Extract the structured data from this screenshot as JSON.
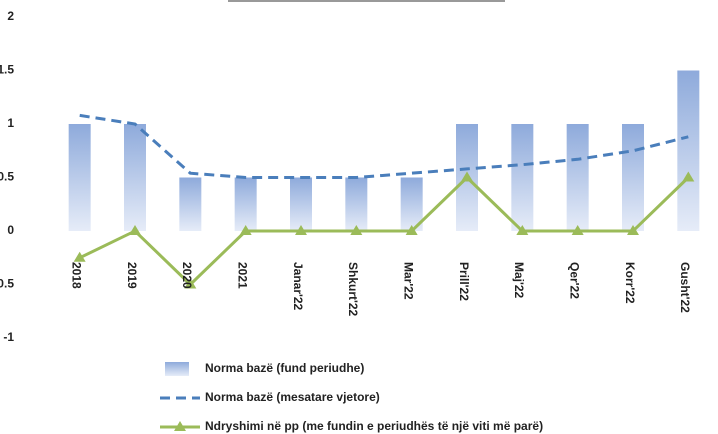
{
  "chart_data": {
    "type": "bar_line",
    "categories": [
      "2018",
      "2019",
      "2020",
      "2021",
      "Janar'22",
      "Shkurt'22",
      "Mar'22",
      "Prill'22",
      "Maj'22",
      "Qer'22",
      "Korr'22",
      "Gusht'22"
    ],
    "series": [
      {
        "name": "Norma bazë (fund periudhe)",
        "type": "bar",
        "color": "#8eaadb",
        "values": [
          1,
          1,
          0.5,
          0.5,
          0.5,
          0.5,
          0.5,
          1,
          1,
          1,
          1,
          1.5
        ]
      },
      {
        "name": "Norma bazë (mesatare vjetore)",
        "type": "dashed-line",
        "color": "#4a7ebb",
        "values": [
          1.08,
          1.0,
          0.54,
          0.5,
          0.5,
          0.5,
          0.54,
          0.58,
          0.62,
          0.67,
          0.75,
          0.88
        ]
      },
      {
        "name": "Ndryshimi në pp (me fundin e periudhës të një viti më parë)",
        "type": "line-marker",
        "color": "#9bbb59",
        "values": [
          -0.25,
          0,
          -0.5,
          0,
          0,
          0,
          0,
          0.5,
          0,
          0,
          0,
          0.5
        ]
      }
    ],
    "ylim": [
      -1,
      2
    ],
    "yticks": [
      -1,
      -0.5,
      0,
      0.5,
      1,
      1.5,
      2
    ]
  }
}
